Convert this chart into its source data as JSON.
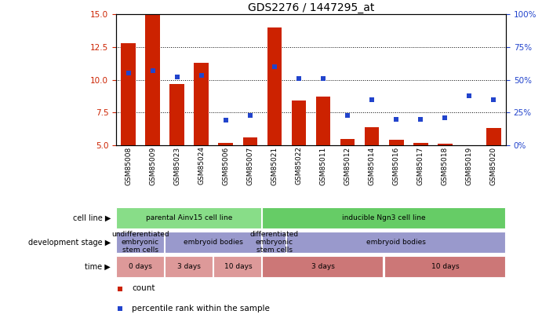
{
  "title": "GDS2276 / 1447295_at",
  "samples": [
    "GSM85008",
    "GSM85009",
    "GSM85023",
    "GSM85024",
    "GSM85006",
    "GSM85007",
    "GSM85021",
    "GSM85022",
    "GSM85011",
    "GSM85012",
    "GSM85014",
    "GSM85016",
    "GSM85017",
    "GSM85018",
    "GSM85019",
    "GSM85020"
  ],
  "counts": [
    12.8,
    15.0,
    9.7,
    11.3,
    5.2,
    5.6,
    14.0,
    8.4,
    8.7,
    5.5,
    6.4,
    5.4,
    5.2,
    5.1,
    5.0,
    6.3
  ],
  "percentiles": [
    55,
    57,
    52,
    53,
    19,
    23,
    60,
    51,
    51,
    23,
    35,
    20,
    20,
    21,
    38,
    35
  ],
  "ylim_left": [
    5.0,
    15.0
  ],
  "ylim_right": [
    0,
    100
  ],
  "yticks_left": [
    5.0,
    7.5,
    10.0,
    12.5,
    15.0
  ],
  "yticks_right": [
    0,
    25,
    50,
    75,
    100
  ],
  "bar_color": "#cc2200",
  "dot_color": "#2244cc",
  "plot_bg": "#ffffff",
  "grid_color": "#000000",
  "cell_line_groups": [
    {
      "label": "parental Ainv15 cell line",
      "start": 0,
      "end": 6,
      "color": "#88dd88"
    },
    {
      "label": "inducible Ngn3 cell line",
      "start": 6,
      "end": 16,
      "color": "#66cc66"
    }
  ],
  "dev_stage_groups": [
    {
      "label": "undifferentiated\nembryonic\nstem cells",
      "start": 0,
      "end": 2,
      "color": "#9999cc"
    },
    {
      "label": "embryoid bodies",
      "start": 2,
      "end": 6,
      "color": "#9999cc"
    },
    {
      "label": "differentiated\nembryonic\nstem cells",
      "start": 6,
      "end": 7,
      "color": "#9999cc"
    },
    {
      "label": "embryoid bodies",
      "start": 7,
      "end": 16,
      "color": "#9999cc"
    }
  ],
  "time_groups": [
    {
      "label": "0 days",
      "start": 0,
      "end": 2,
      "color": "#dd9999"
    },
    {
      "label": "3 days",
      "start": 2,
      "end": 4,
      "color": "#dd9999"
    },
    {
      "label": "10 days",
      "start": 4,
      "end": 6,
      "color": "#dd9999"
    },
    {
      "label": "3 days",
      "start": 6,
      "end": 11,
      "color": "#cc7777"
    },
    {
      "label": "10 days",
      "start": 11,
      "end": 16,
      "color": "#cc7777"
    }
  ],
  "row_labels": [
    "cell line",
    "development stage",
    "time"
  ],
  "legend_count_label": "count",
  "legend_pct_label": "percentile rank within the sample",
  "fig_width": 6.91,
  "fig_height": 4.05,
  "dpi": 100
}
